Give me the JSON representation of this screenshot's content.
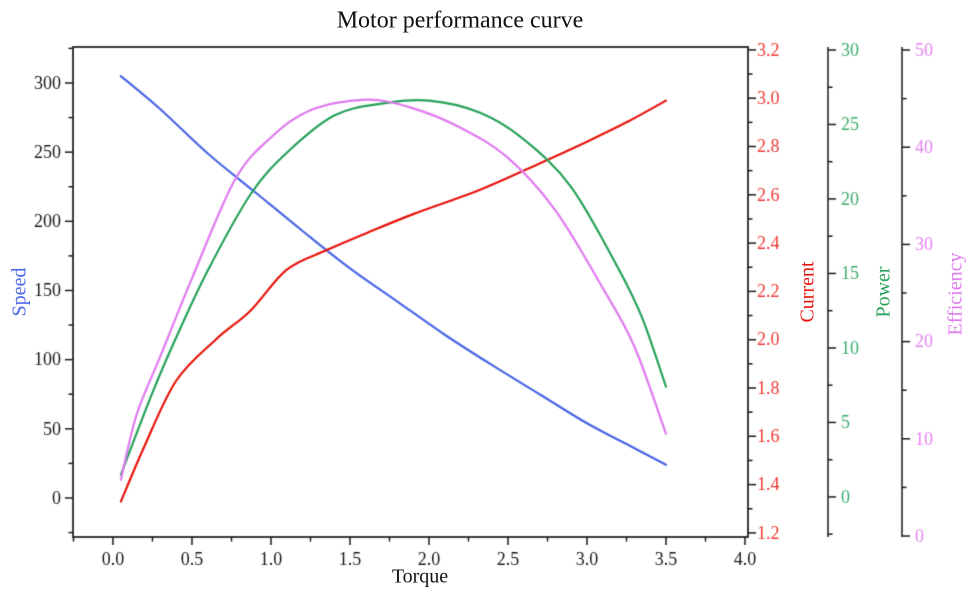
{
  "title": "Motor performance curve",
  "chart_data": {
    "type": "line",
    "title": "Motor performance curve",
    "xlabel": "Torque",
    "background": "#ffffff",
    "frame_color": "#1a1a1a",
    "legend": "none",
    "grid": false,
    "x_axis": {
      "label": "Torque",
      "range": [
        -0.253,
        4.019
      ],
      "tick_values": [
        0,
        0.5,
        1.0,
        1.5,
        2.0,
        2.5,
        3.0,
        3.5,
        4.0
      ],
      "tick_labels": [
        "0.0",
        "0.5",
        "1.0",
        "1.5",
        "2.0",
        "2.5",
        "3.0",
        "3.5",
        "4.0"
      ],
      "minor_step": 0.25,
      "color": "#1a1a1a"
    },
    "axes": {
      "speed": {
        "label": "Speed",
        "side": "left",
        "color": "#4a66e6",
        "tick_label_color": "#1a1a1a",
        "range": [
          -28.2,
          326.0
        ],
        "tick_values": [
          0,
          50,
          100,
          150,
          200,
          250,
          300
        ],
        "tick_labels": [
          "0",
          "50",
          "100",
          "150",
          "200",
          "250",
          "300"
        ],
        "minor_step": 25
      },
      "current": {
        "label": "Current",
        "side": "right",
        "color": "#e8150d",
        "tick_label_color": "#ee3a33",
        "range": [
          1.183,
          3.212
        ],
        "tick_values": [
          1.2,
          1.4,
          1.6,
          1.8,
          2.0,
          2.2,
          2.4,
          2.6,
          2.8,
          3.0,
          3.2
        ],
        "tick_labels": [
          "1.2",
          "1.4",
          "1.6",
          "1.8",
          "2.0",
          "2.2",
          "2.4",
          "2.6",
          "2.8",
          "3.0",
          "3.2"
        ],
        "minor_step": 0.1
      },
      "power": {
        "label": "Power",
        "side": "right-offset-1",
        "color": "#27a25a",
        "tick_label_color": "#3fae6e",
        "range": [
          -2.69,
          30.2
        ],
        "tick_values": [
          0,
          5,
          10,
          15,
          20,
          25,
          30
        ],
        "tick_labels": [
          "0",
          "5",
          "10",
          "15",
          "20",
          "25",
          "30"
        ],
        "minor_step": 2.5
      },
      "efficiency": {
        "label": "Efficiency",
        "side": "right-offset-2",
        "color": "#e07bf0",
        "tick_label_color": "#e584f2",
        "range": [
          -0.1,
          50.31
        ],
        "tick_values": [
          0,
          10,
          20,
          30,
          40,
          50
        ],
        "tick_labels": [
          "0",
          "10",
          "20",
          "30",
          "40",
          "50"
        ],
        "minor_step": 5
      }
    },
    "series": [
      {
        "name": "Speed",
        "axis": "speed",
        "color": "#4a66e6",
        "points": [
          [
            0.05,
            305
          ],
          [
            0.3,
            281
          ],
          [
            0.6,
            249
          ],
          [
            0.9,
            221
          ],
          [
            1.2,
            193
          ],
          [
            1.5,
            166
          ],
          [
            1.8,
            142
          ],
          [
            2.1,
            118
          ],
          [
            2.4,
            96
          ],
          [
            2.7,
            75
          ],
          [
            3.0,
            54
          ],
          [
            3.25,
            39
          ],
          [
            3.5,
            24
          ]
        ]
      },
      {
        "name": "Current",
        "axis": "current",
        "color": "#e8150d",
        "points": [
          [
            0.05,
            1.33
          ],
          [
            0.2,
            1.56
          ],
          [
            0.4,
            1.83
          ],
          [
            0.65,
            2.0
          ],
          [
            0.87,
            2.12
          ],
          [
            1.1,
            2.29
          ],
          [
            1.35,
            2.37
          ],
          [
            1.6,
            2.44
          ],
          [
            1.9,
            2.52
          ],
          [
            2.32,
            2.62
          ],
          [
            2.7,
            2.73
          ],
          [
            3.0,
            2.82
          ],
          [
            3.25,
            2.9
          ],
          [
            3.5,
            2.99
          ]
        ]
      },
      {
        "name": "Power",
        "axis": "power",
        "color": "#27a25a",
        "points": [
          [
            0.05,
            1.5
          ],
          [
            0.25,
            7.0
          ],
          [
            0.4,
            10.7
          ],
          [
            0.6,
            15.2
          ],
          [
            0.87,
            20.3
          ],
          [
            1.1,
            23.1
          ],
          [
            1.4,
            25.6
          ],
          [
            1.7,
            26.4
          ],
          [
            2.0,
            26.6
          ],
          [
            2.32,
            25.8
          ],
          [
            2.6,
            24.0
          ],
          [
            2.9,
            20.8
          ],
          [
            3.2,
            15.3
          ],
          [
            3.35,
            12.0
          ],
          [
            3.5,
            7.4
          ]
        ]
      },
      {
        "name": "Efficiency",
        "axis": "efficiency",
        "color": "#e07bf0",
        "points": [
          [
            0.05,
            5.8
          ],
          [
            0.15,
            12.5
          ],
          [
            0.3,
            18.5
          ],
          [
            0.5,
            26.5
          ],
          [
            0.77,
            36.6
          ],
          [
            1.0,
            41.0
          ],
          [
            1.25,
            43.8
          ],
          [
            1.6,
            44.9
          ],
          [
            1.9,
            44.0
          ],
          [
            2.2,
            42.0
          ],
          [
            2.5,
            38.9
          ],
          [
            2.8,
            33.5
          ],
          [
            3.1,
            25.5
          ],
          [
            3.3,
            19.5
          ],
          [
            3.5,
            10.5
          ]
        ]
      }
    ]
  }
}
